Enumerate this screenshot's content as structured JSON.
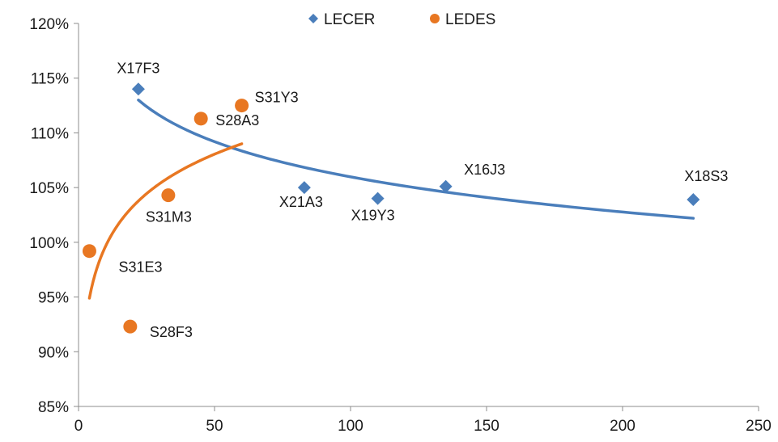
{
  "chart_data": {
    "type": "scatter",
    "title": "",
    "xlabel": "",
    "ylabel": "",
    "xlim": [
      0,
      250
    ],
    "ylim": [
      0.85,
      1.2
    ],
    "x_ticks": [
      0,
      50,
      100,
      150,
      200,
      250
    ],
    "y_ticks": [
      0.85,
      0.9,
      0.95,
      1.0,
      1.05,
      1.1,
      1.15,
      1.2
    ],
    "x_tick_labels": [
      "0",
      "50",
      "100",
      "150",
      "200",
      "250"
    ],
    "y_tick_labels": [
      "85%",
      "90%",
      "95%",
      "100%",
      "105%",
      "110%",
      "115%",
      "120%"
    ],
    "grid": false,
    "legend_position": "top-center",
    "series": [
      {
        "name": "LECER",
        "color": "#4a7ebb",
        "marker": "diamond",
        "points": [
          {
            "label": "X17F3",
            "x": 22,
            "y": 1.14
          },
          {
            "label": "X21A3",
            "x": 83,
            "y": 1.05
          },
          {
            "label": "X19Y3",
            "x": 110,
            "y": 1.04
          },
          {
            "label": "X16J3",
            "x": 135,
            "y": 1.051
          },
          {
            "label": "X18S3",
            "x": 226,
            "y": 1.039
          }
        ],
        "trendline": {
          "type": "log",
          "x_range": [
            22,
            226
          ],
          "y_at_start": 1.13,
          "y_at_end": 1.022
        }
      },
      {
        "name": "LEDES",
        "color": "#e87722",
        "marker": "circle",
        "points": [
          {
            "label": "S31E3",
            "x": 4,
            "y": 0.992
          },
          {
            "label": "S28F3",
            "x": 19,
            "y": 0.923
          },
          {
            "label": "S31M3",
            "x": 33,
            "y": 1.043
          },
          {
            "label": "S28A3",
            "x": 45,
            "y": 1.113
          },
          {
            "label": "S31Y3",
            "x": 60,
            "y": 1.125
          }
        ],
        "trendline": {
          "type": "log",
          "x_range": [
            4,
            60
          ],
          "y_at_start": 0.949,
          "y_at_end": 1.09
        }
      }
    ]
  }
}
